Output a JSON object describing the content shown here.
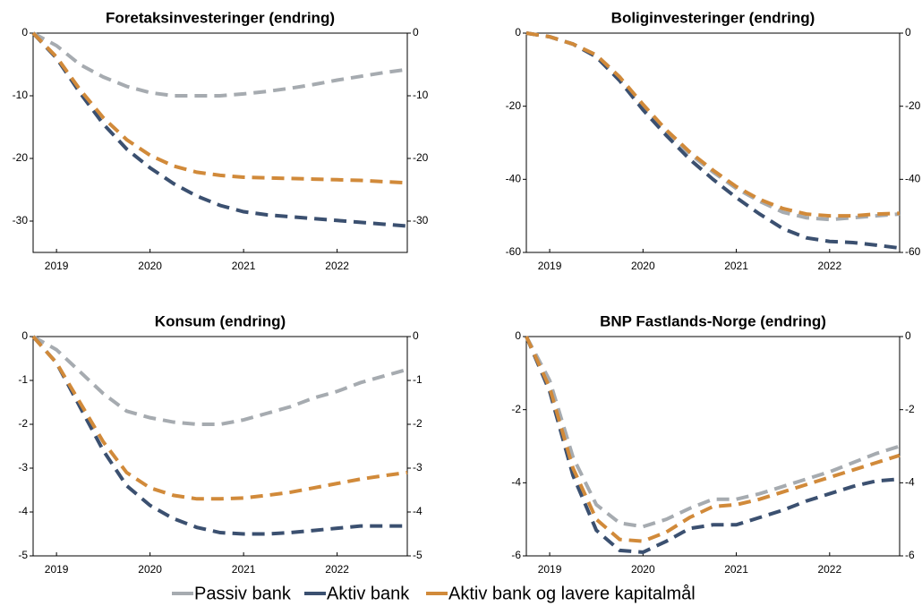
{
  "chart_data": [
    {
      "type": "line",
      "title": "Foretaksinvesteringer (endring)",
      "x": [
        2018.75,
        2019,
        2019.25,
        2019.5,
        2019.75,
        2020,
        2020.25,
        2020.5,
        2020.75,
        2021,
        2021.25,
        2021.5,
        2021.75,
        2022,
        2022.25,
        2022.5,
        2022.75
      ],
      "xlim": [
        2018.75,
        2022.75
      ],
      "xticks": [
        2019,
        2020,
        2021,
        2022
      ],
      "ylim": [
        -35,
        0
      ],
      "yticks": [
        0,
        -10,
        -20,
        -30
      ],
      "y2lim": [
        -35,
        0
      ],
      "y2ticks": [
        0,
        -10,
        -20,
        -30
      ],
      "series": [
        {
          "name": "Passiv bank",
          "color": "#a6abb0",
          "values": [
            0,
            -2,
            -5,
            -7,
            -8.5,
            -9.5,
            -10,
            -10,
            -10,
            -9.7,
            -9.3,
            -8.8,
            -8.2,
            -7.5,
            -6.9,
            -6.3,
            -5.8
          ]
        },
        {
          "name": "Aktiv bank",
          "color": "#3b5070",
          "values": [
            0,
            -4,
            -9.5,
            -14.5,
            -18.5,
            -21.5,
            -24,
            -26,
            -27.5,
            -28.5,
            -29,
            -29.3,
            -29.6,
            -29.9,
            -30.2,
            -30.5,
            -30.8
          ]
        },
        {
          "name": "Aktiv bank og lavere kapitalmål",
          "color": "#d18a3a",
          "values": [
            0,
            -3.8,
            -9,
            -13.5,
            -17,
            -19.5,
            -21.2,
            -22.2,
            -22.7,
            -23,
            -23.1,
            -23.2,
            -23.3,
            -23.4,
            -23.5,
            -23.7,
            -23.9
          ]
        }
      ]
    },
    {
      "type": "line",
      "title": "Boliginvesteringer (endring)",
      "x": [
        2018.75,
        2019,
        2019.25,
        2019.5,
        2019.75,
        2020,
        2020.25,
        2020.5,
        2020.75,
        2021,
        2021.25,
        2021.5,
        2021.75,
        2022,
        2022.25,
        2022.5,
        2022.75
      ],
      "xlim": [
        2018.75,
        2022.75
      ],
      "xticks": [
        2019,
        2020,
        2021,
        2022
      ],
      "ylim": [
        -60,
        0
      ],
      "yticks": [
        0,
        -20,
        -40,
        -60
      ],
      "y2lim": [
        -60,
        0
      ],
      "y2ticks": [
        0,
        -20,
        -40,
        -60
      ],
      "series": [
        {
          "color": "#a6abb0",
          "values": [
            0,
            -1,
            -3,
            -6,
            -12,
            -20,
            -27,
            -33,
            -38,
            -42.5,
            -46,
            -49,
            -50.5,
            -51,
            -50.5,
            -50,
            -49.5
          ]
        },
        {
          "color": "#3b5070",
          "values": [
            0,
            -1,
            -3,
            -6.5,
            -13,
            -21,
            -28,
            -34.5,
            -40,
            -45,
            -49.5,
            -53.5,
            -56,
            -57,
            -57.3,
            -58,
            -58.8
          ]
        },
        {
          "color": "#d18a3a",
          "values": [
            0,
            -1,
            -3,
            -6,
            -12,
            -19.5,
            -26.5,
            -32.5,
            -37.5,
            -42,
            -45.5,
            -48,
            -49.5,
            -50,
            -50,
            -49.5,
            -49.3
          ]
        }
      ]
    },
    {
      "type": "line",
      "title": "Konsum (endring)",
      "x": [
        2018.75,
        2019,
        2019.25,
        2019.5,
        2019.75,
        2020,
        2020.25,
        2020.5,
        2020.75,
        2021,
        2021.25,
        2021.5,
        2021.75,
        2022,
        2022.25,
        2022.5,
        2022.75
      ],
      "xlim": [
        2018.75,
        2022.75
      ],
      "xticks": [
        2019,
        2020,
        2021,
        2022
      ],
      "ylim": [
        -5,
        0
      ],
      "yticks": [
        0,
        -1,
        -2,
        -3,
        -4,
        -5
      ],
      "y2lim": [
        -5,
        0
      ],
      "y2ticks": [
        0,
        -1,
        -2,
        -3,
        -4,
        -5
      ],
      "series": [
        {
          "color": "#a6abb0",
          "values": [
            0,
            -0.3,
            -0.8,
            -1.3,
            -1.7,
            -1.85,
            -1.95,
            -2,
            -2,
            -1.9,
            -1.75,
            -1.6,
            -1.4,
            -1.25,
            -1.05,
            -0.9,
            -0.75
          ]
        },
        {
          "color": "#3b5070",
          "values": [
            0,
            -0.6,
            -1.6,
            -2.6,
            -3.4,
            -3.85,
            -4.15,
            -4.35,
            -4.47,
            -4.5,
            -4.5,
            -4.47,
            -4.42,
            -4.37,
            -4.32,
            -4.32,
            -4.32
          ]
        },
        {
          "color": "#d18a3a",
          "values": [
            0,
            -0.6,
            -1.5,
            -2.4,
            -3.1,
            -3.45,
            -3.62,
            -3.7,
            -3.7,
            -3.68,
            -3.62,
            -3.55,
            -3.45,
            -3.35,
            -3.25,
            -3.17,
            -3.1
          ]
        }
      ]
    },
    {
      "type": "line",
      "title": "BNP Fastlands-Norge (endring)",
      "x": [
        2018.75,
        2019,
        2019.25,
        2019.5,
        2019.75,
        2020,
        2020.25,
        2020.5,
        2020.75,
        2021,
        2021.25,
        2021.5,
        2021.75,
        2022,
        2022.25,
        2022.5,
        2022.75
      ],
      "xlim": [
        2018.75,
        2022.75
      ],
      "xticks": [
        2019,
        2020,
        2021,
        2022
      ],
      "ylim": [
        -6,
        0
      ],
      "yticks": [
        0,
        -2,
        -4,
        -6
      ],
      "y2lim": [
        -6,
        0
      ],
      "y2ticks": [
        0,
        -2,
        -4,
        -6
      ],
      "series": [
        {
          "color": "#a6abb0",
          "values": [
            0,
            -1.2,
            -3.3,
            -4.6,
            -5.1,
            -5.2,
            -5.0,
            -4.7,
            -4.45,
            -4.45,
            -4.3,
            -4.1,
            -3.9,
            -3.7,
            -3.45,
            -3.2,
            -3.0
          ]
        },
        {
          "color": "#3b5070",
          "values": [
            0,
            -1.5,
            -3.8,
            -5.3,
            -5.85,
            -5.9,
            -5.6,
            -5.25,
            -5.15,
            -5.15,
            -4.95,
            -4.75,
            -4.5,
            -4.3,
            -4.1,
            -3.95,
            -3.9
          ]
        },
        {
          "color": "#d18a3a",
          "values": [
            0,
            -1.4,
            -3.6,
            -5.0,
            -5.55,
            -5.6,
            -5.35,
            -4.95,
            -4.65,
            -4.6,
            -4.45,
            -4.25,
            -4.05,
            -3.85,
            -3.65,
            -3.45,
            -3.25
          ]
        }
      ]
    }
  ]
}
